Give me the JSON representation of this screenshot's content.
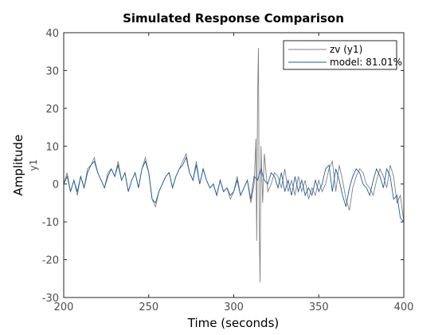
{
  "chart_data": {
    "type": "line",
    "title": "Simulated Response Comparison",
    "xlabel": "Time (seconds)",
    "ylabel": "Amplitude",
    "ylabel_channel": "y1",
    "xlim": [
      200,
      400
    ],
    "ylim": [
      -30,
      40
    ],
    "xticks": [
      "200",
      "250",
      "300",
      "350",
      "400"
    ],
    "yticks": [
      "-30",
      "-20",
      "-10",
      "0",
      "10",
      "20",
      "30",
      "40"
    ],
    "grid": false,
    "legend_position": "top-right",
    "series": [
      {
        "name": "zv (y1)",
        "color": "#808080",
        "x": [
          200,
          202,
          204,
          206,
          208,
          210,
          212,
          214,
          216,
          218,
          220,
          222,
          224,
          226,
          228,
          230,
          232,
          234,
          236,
          238,
          240,
          242,
          244,
          246,
          248,
          250,
          252,
          254,
          256,
          258,
          260,
          262,
          264,
          266,
          268,
          270,
          272,
          274,
          276,
          278,
          280,
          282,
          284,
          286,
          288,
          290,
          292,
          294,
          296,
          298,
          300,
          302,
          304,
          306,
          308,
          310,
          312,
          313,
          313.5,
          314,
          314.5,
          315,
          315.5,
          316,
          317,
          318,
          320,
          322,
          324,
          326,
          328,
          330,
          332,
          334,
          336,
          338,
          340,
          342,
          344,
          346,
          348,
          350,
          352,
          354,
          356,
          358,
          360,
          362,
          364,
          366,
          368,
          370,
          372,
          374,
          376,
          378,
          380,
          382,
          384,
          386,
          388,
          390,
          392,
          394,
          396,
          398,
          400
        ],
        "y": [
          0,
          3,
          -2,
          1,
          -3,
          2,
          -1,
          4,
          5,
          7,
          3,
          1,
          -1,
          3,
          4,
          2,
          6,
          1,
          3,
          -2,
          1,
          3,
          -1,
          4,
          7,
          3,
          -4,
          -6,
          -2,
          0,
          2,
          3,
          -1,
          2,
          4,
          6,
          8,
          3,
          1,
          6,
          0,
          4,
          1,
          -1,
          0,
          -3,
          1,
          -2,
          -1,
          -4,
          -2,
          2,
          -3,
          -1,
          1,
          -5,
          0,
          12,
          -15,
          23,
          36,
          -12,
          -26,
          10,
          -5,
          8,
          -2,
          0,
          3,
          2,
          -1,
          4,
          -2,
          1,
          -3,
          2,
          -2,
          1,
          -4,
          -1,
          -3,
          1,
          -2,
          0,
          4,
          6,
          -2,
          5,
          1,
          -4,
          -7,
          -1,
          2,
          4,
          3,
          0,
          -1,
          -3,
          1,
          4,
          2,
          -1,
          5,
          2,
          -5,
          -3,
          -10
        ]
      },
      {
        "name": "model: 81.01%",
        "color": "#1f5f9f",
        "x": [
          200,
          202,
          204,
          206,
          208,
          210,
          212,
          214,
          216,
          218,
          220,
          222,
          224,
          226,
          228,
          230,
          232,
          234,
          236,
          238,
          240,
          242,
          244,
          246,
          248,
          250,
          252,
          254,
          256,
          258,
          260,
          262,
          264,
          266,
          268,
          270,
          272,
          274,
          276,
          278,
          280,
          282,
          284,
          286,
          288,
          290,
          292,
          294,
          296,
          298,
          300,
          302,
          304,
          306,
          308,
          310,
          312,
          314,
          316,
          318,
          320,
          322,
          324,
          326,
          328,
          330,
          332,
          334,
          336,
          338,
          340,
          342,
          344,
          346,
          348,
          350,
          352,
          354,
          356,
          358,
          360,
          362,
          364,
          366,
          368,
          370,
          372,
          374,
          376,
          378,
          380,
          382,
          384,
          386,
          388,
          390,
          392,
          394,
          396,
          398,
          400
        ],
        "y": [
          0,
          2,
          -2,
          1,
          -2,
          2,
          -1,
          3,
          5,
          6,
          3,
          1,
          -1,
          2,
          4,
          2,
          5,
          1,
          3,
          -2,
          1,
          3,
          -1,
          4,
          6,
          3,
          -4,
          -5,
          -2,
          0,
          2,
          3,
          -1,
          2,
          4,
          5,
          7,
          3,
          1,
          5,
          0,
          4,
          1,
          -1,
          0,
          -3,
          1,
          -2,
          -1,
          -3,
          -2,
          1,
          -3,
          -1,
          1,
          -4,
          2,
          1,
          4,
          1,
          0,
          3,
          2,
          -1,
          3,
          -2,
          1,
          -3,
          2,
          -2,
          1,
          -3,
          -1,
          -3,
          1,
          -2,
          0,
          4,
          5,
          -2,
          4,
          1,
          -3,
          -6,
          -1,
          2,
          4,
          3,
          0,
          -1,
          -3,
          1,
          4,
          2,
          -1,
          4,
          2,
          -4,
          -3,
          -9,
          -10
        ]
      }
    ]
  }
}
